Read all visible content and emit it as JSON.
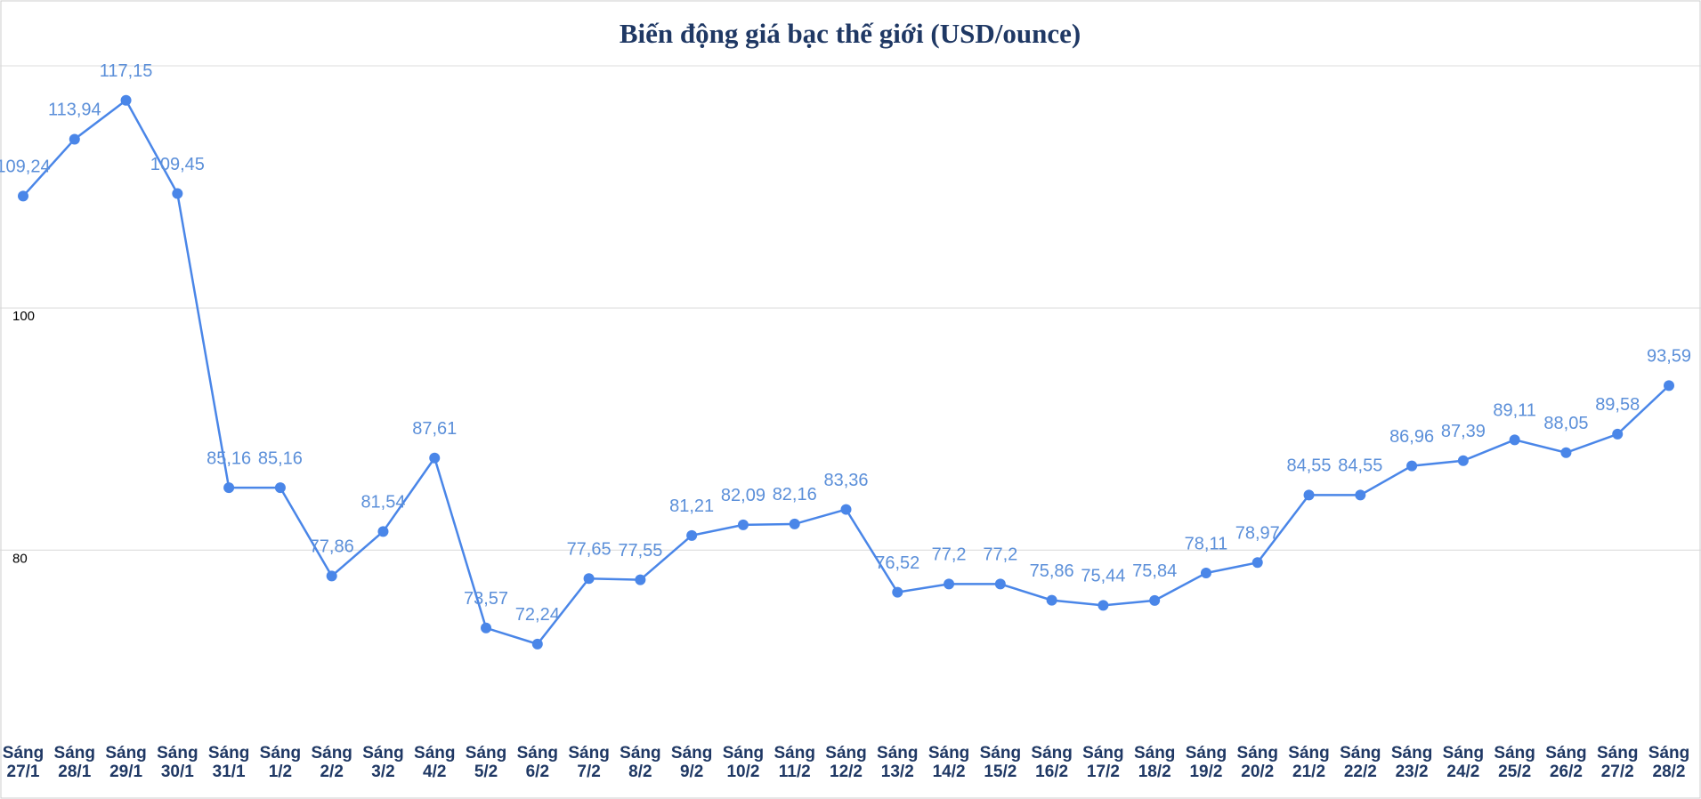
{
  "chart_data": {
    "type": "line",
    "title": "Biến động giá bạc thế giới (USD/ounce)",
    "categories": [
      "Sáng 27/1",
      "Sáng 28/1",
      "Sáng 29/1",
      "Sáng 30/1",
      "Sáng 31/1",
      "Sáng 1/2",
      "Sáng 2/2",
      "Sáng 3/2",
      "Sáng 4/2",
      "Sáng 5/2",
      "Sáng 6/2",
      "Sáng 7/2",
      "Sáng 8/2",
      "Sáng 9/2",
      "Sáng 10/2",
      "Sáng 11/2",
      "Sáng 12/2",
      "Sáng 13/2",
      "Sáng 14/2",
      "Sáng 15/2",
      "Sáng 16/2",
      "Sáng 17/2",
      "Sáng 18/2",
      "Sáng 19/2",
      "Sáng 20/2",
      "Sáng 21/2",
      "Sáng 22/2",
      "Sáng 23/2",
      "Sáng 24/2",
      "Sáng 25/2",
      "Sáng 26/2",
      "Sáng 27/2",
      "Sáng 28/2"
    ],
    "series": [
      {
        "color": "#4a86e8",
        "values": [
          109.24,
          113.94,
          117.15,
          109.45,
          85.16,
          85.16,
          77.86,
          81.54,
          87.61,
          73.57,
          72.24,
          77.65,
          77.55,
          81.21,
          82.09,
          82.16,
          83.36,
          76.52,
          77.2,
          77.2,
          75.86,
          75.44,
          75.84,
          78.11,
          78.97,
          84.55,
          84.55,
          86.96,
          87.39,
          89.11,
          88.05,
          89.58,
          93.59
        ],
        "value_labels": [
          "109,24",
          "113,94",
          "117,15",
          "109,45",
          "85,16",
          "85,16",
          "77,86",
          "81,54",
          "87,61",
          "73,57",
          "72,24",
          "77,65",
          "77,55",
          "81,21",
          "82,09",
          "82,16",
          "83,36",
          "76,52",
          "77,2",
          "77,2",
          "75,86",
          "75,44",
          "75,84",
          "78,11",
          "78,97",
          "84,55",
          "84,55",
          "86,96",
          "87,39",
          "89,11",
          "88,05",
          "89,58",
          "93,59"
        ]
      }
    ],
    "ylim": [
      64,
      120
    ],
    "yticks": [
      80,
      100
    ],
    "grid": true
  }
}
